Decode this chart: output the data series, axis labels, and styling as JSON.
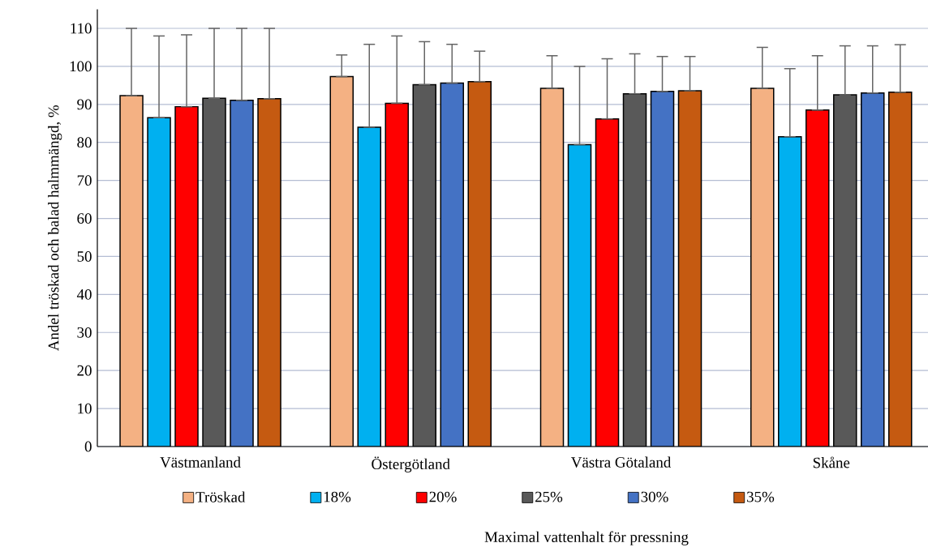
{
  "chart_data": {
    "type": "bar",
    "xlabel": "Maximal vattenhalt för pressning",
    "ylabel": "Andel tröskad  och balad halmmängd, %",
    "categories": [
      "Västmanland",
      "Östergötland",
      "Västra Götaland",
      "Skåne"
    ],
    "ylim": [
      0,
      115
    ],
    "yticks": [
      0,
      10,
      20,
      30,
      40,
      50,
      60,
      70,
      80,
      90,
      100,
      110
    ],
    "grid": "y",
    "legend": "bottom",
    "series": [
      {
        "name": "Tröskad",
        "color": "#f4b183",
        "values": [
          92.3,
          97.3,
          94.2,
          94.2
        ],
        "errors": [
          [
            92.3,
            110
          ],
          [
            97.3,
            103
          ],
          [
            94.2,
            102.8
          ],
          [
            94.2,
            105
          ]
        ]
      },
      {
        "name": "18%",
        "color": "#00b0f0",
        "values": [
          86.5,
          84,
          79.4,
          81.5
        ],
        "errors": [
          [
            86.5,
            108
          ],
          [
            84,
            105.8
          ],
          [
            79.4,
            100
          ],
          [
            81.5,
            99.4
          ]
        ]
      },
      {
        "name": "20%",
        "color": "#ff0000",
        "values": [
          89.4,
          90.3,
          86.2,
          88.5
        ],
        "errors": [
          [
            89.4,
            108.3
          ],
          [
            90.3,
            108
          ],
          [
            86.2,
            102
          ],
          [
            88.5,
            102.8
          ]
        ]
      },
      {
        "name": "25%",
        "color": "#595959",
        "values": [
          91.6,
          95.2,
          92.8,
          92.5
        ],
        "errors": [
          [
            91.6,
            110
          ],
          [
            95.2,
            106.5
          ],
          [
            92.8,
            103.3
          ],
          [
            92.5,
            105.4
          ]
        ]
      },
      {
        "name": "30%",
        "color": "#4472c4",
        "values": [
          91.1,
          95.6,
          93.4,
          93
        ],
        "errors": [
          [
            91.1,
            110
          ],
          [
            95.6,
            105.8
          ],
          [
            93.4,
            102.6
          ],
          [
            93,
            105.4
          ]
        ]
      },
      {
        "name": "35%",
        "color": "#c55a11",
        "values": [
          91.5,
          96,
          93.6,
          93.2
        ],
        "errors": [
          [
            91.5,
            110
          ],
          [
            96,
            104
          ],
          [
            93.6,
            102.6
          ],
          [
            93.2,
            105.7
          ]
        ]
      }
    ]
  }
}
